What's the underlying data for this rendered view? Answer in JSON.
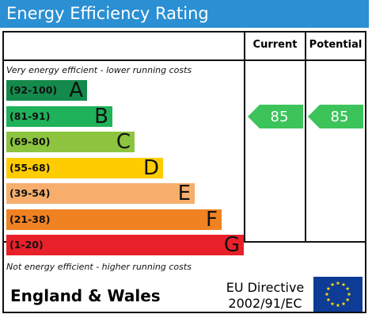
{
  "title": "Energy Efficiency Rating",
  "columns": {
    "current": "Current",
    "potential": "Potential"
  },
  "notes": {
    "top": "Very energy efficient - lower running costs",
    "bottom": "Not energy efficient - higher running costs"
  },
  "footer": {
    "region": "England & Wales",
    "directive_line1": "EU Directive",
    "directive_line2": "2002/91/EC",
    "flag_icon": "eu-flag-icon"
  },
  "chart_data": {
    "type": "bar",
    "categories": [
      "A",
      "B",
      "C",
      "D",
      "E",
      "F",
      "G"
    ],
    "bands": [
      {
        "letter": "A",
        "range": "(92-100)",
        "color": "#138a4b"
      },
      {
        "letter": "B",
        "range": "(81-91)",
        "color": "#1fb25a"
      },
      {
        "letter": "C",
        "range": "(69-80)",
        "color": "#8cc43f"
      },
      {
        "letter": "D",
        "range": "(55-68)",
        "color": "#ffcc00"
      },
      {
        "letter": "E",
        "range": "(39-54)",
        "color": "#f7ae6d"
      },
      {
        "letter": "F",
        "range": "(21-38)",
        "color": "#f08222"
      },
      {
        "letter": "G",
        "range": "(1-20)",
        "color": "#e8202a"
      }
    ],
    "current": {
      "value": 85,
      "band": "B",
      "color": "#3cc35a"
    },
    "potential": {
      "value": 85,
      "band": "B",
      "color": "#3cc35a"
    }
  }
}
